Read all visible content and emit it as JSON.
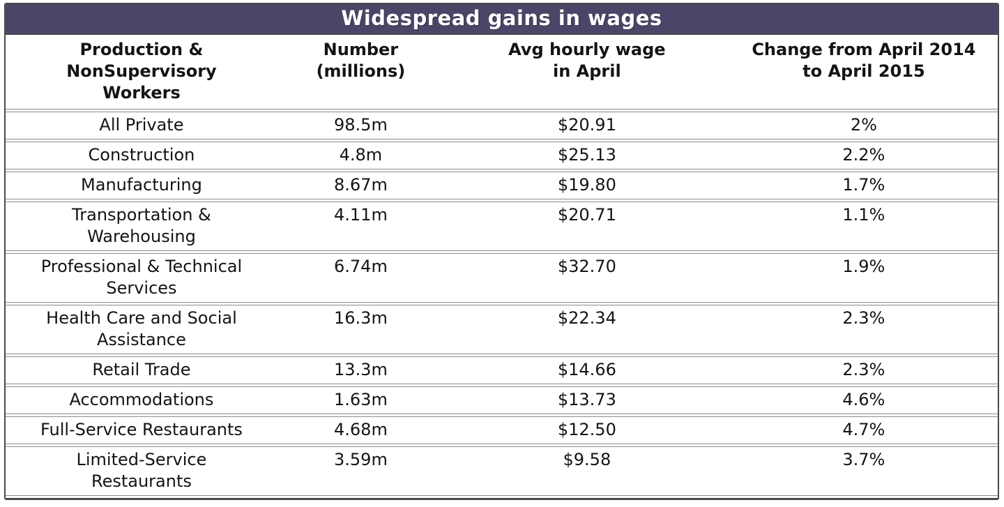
{
  "title": "Widespread gains in wages",
  "colors": {
    "title_bg": "#4b4668",
    "title_text": "#ffffff",
    "outer_border": "#4a4a4a",
    "row_line": "#8c8c8c",
    "text": "#141414",
    "background": "#ffffff"
  },
  "chart_data": {
    "type": "table",
    "title": "Widespread gains in wages",
    "columns": [
      {
        "key": "category",
        "label": "Production & NonSupervisory Workers",
        "display": "Production &\nNonSupervisory\nWorkers"
      },
      {
        "key": "number",
        "label": "Number (millions)",
        "display": "Number\n(millions)"
      },
      {
        "key": "wage",
        "label": "Avg hourly wage in April",
        "display": "Avg hourly wage\nin April"
      },
      {
        "key": "change",
        "label": "Change from April 2014 to April 2015",
        "display": "Change from April 2014\nto April 2015"
      }
    ],
    "rows": [
      {
        "category": "All Private",
        "number": "98.5m",
        "wage": "$20.91",
        "change": "2%"
      },
      {
        "category": "Construction",
        "number": "4.8m",
        "wage": "$25.13",
        "change": "2.2%"
      },
      {
        "category": "Manufacturing",
        "number": "8.67m",
        "wage": "$19.80",
        "change": "1.7%"
      },
      {
        "category": "Transportation & Warehousing",
        "category_display": "Transportation &\nWarehousing",
        "number": "4.11m",
        "wage": "$20.71",
        "change": "1.1%"
      },
      {
        "category": "Professional & Technical Services",
        "category_display": "Professional & Technical\nServices",
        "number": "6.74m",
        "wage": "$32.70",
        "change": "1.9%"
      },
      {
        "category": "Health Care and Social Assistance",
        "category_display": "Health Care and Social\nAssistance",
        "number": "16.3m",
        "wage": "$22.34",
        "change": "2.3%"
      },
      {
        "category": "Retail Trade",
        "number": "13.3m",
        "wage": "$14.66",
        "change": "2.3%"
      },
      {
        "category": "Accommodations",
        "number": "1.63m",
        "wage": "$13.73",
        "change": "4.6%"
      },
      {
        "category": "Full-Service Restaurants",
        "number": "4.68m",
        "wage": "$12.50",
        "change": "4.7%"
      },
      {
        "category": "Limited-Service Restaurants",
        "category_display": "Limited-Service\nRestaurants",
        "number": "3.59m",
        "wage": "$9.58",
        "change": "3.7%"
      }
    ]
  }
}
